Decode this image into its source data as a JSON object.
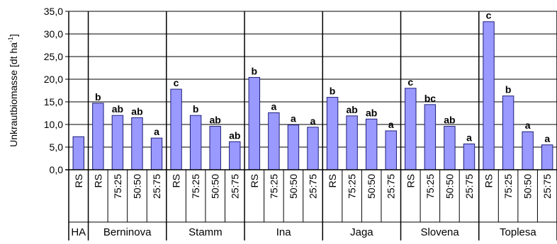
{
  "chart_data": {
    "type": "bar",
    "ylabel": "Unkrautbiomasse [dt ha",
    "ylabel_sup": "-1",
    "ylabel_end": "]",
    "ylim": [
      0,
      35
    ],
    "yticks": [
      "0,0",
      "5,0",
      "10,0",
      "15,0",
      "20,0",
      "25,0",
      "30,0",
      "35,0"
    ],
    "grid": true,
    "bar_color": "#9999ff",
    "groups": [
      {
        "name": "HA",
        "bars": [
          {
            "label": "RS",
            "value": 7.3,
            "sig": ""
          }
        ]
      },
      {
        "name": "Berninova",
        "bars": [
          {
            "label": "RS",
            "value": 14.7,
            "sig": "b"
          },
          {
            "label": "75:25",
            "value": 12.0,
            "sig": "ab"
          },
          {
            "label": "50:50",
            "value": 11.5,
            "sig": "ab"
          },
          {
            "label": "25:75",
            "value": 7.0,
            "sig": "a"
          }
        ]
      },
      {
        "name": "Stamm",
        "bars": [
          {
            "label": "RS",
            "value": 17.8,
            "sig": "c"
          },
          {
            "label": "75:25",
            "value": 12.0,
            "sig": "b"
          },
          {
            "label": "50:50",
            "value": 9.6,
            "sig": "ab"
          },
          {
            "label": "25:75",
            "value": 6.2,
            "sig": "ab"
          }
        ]
      },
      {
        "name": "Ina",
        "bars": [
          {
            "label": "RS",
            "value": 20.4,
            "sig": "b"
          },
          {
            "label": "75:25",
            "value": 12.6,
            "sig": "a"
          },
          {
            "label": "50:50",
            "value": 9.9,
            "sig": "a"
          },
          {
            "label": "25:75",
            "value": 9.4,
            "sig": "a"
          }
        ]
      },
      {
        "name": "Jaga",
        "bars": [
          {
            "label": "RS",
            "value": 16.0,
            "sig": "b"
          },
          {
            "label": "75:25",
            "value": 11.9,
            "sig": "ab"
          },
          {
            "label": "50:50",
            "value": 11.2,
            "sig": "ab"
          },
          {
            "label": "25:75",
            "value": 8.6,
            "sig": "a"
          }
        ]
      },
      {
        "name": "Slovena",
        "bars": [
          {
            "label": "RS",
            "value": 18.0,
            "sig": "c"
          },
          {
            "label": "75:25",
            "value": 14.4,
            "sig": "bc"
          },
          {
            "label": "50:50",
            "value": 9.6,
            "sig": "ab"
          },
          {
            "label": "25:75",
            "value": 5.7,
            "sig": "a"
          }
        ]
      },
      {
        "name": "Toplesa",
        "bars": [
          {
            "label": "RS",
            "value": 32.7,
            "sig": "c"
          },
          {
            "label": "75:25",
            "value": 16.3,
            "sig": "b"
          },
          {
            "label": "50:50",
            "value": 8.4,
            "sig": "a"
          },
          {
            "label": "25:75",
            "value": 5.5,
            "sig": "a"
          }
        ]
      }
    ]
  }
}
